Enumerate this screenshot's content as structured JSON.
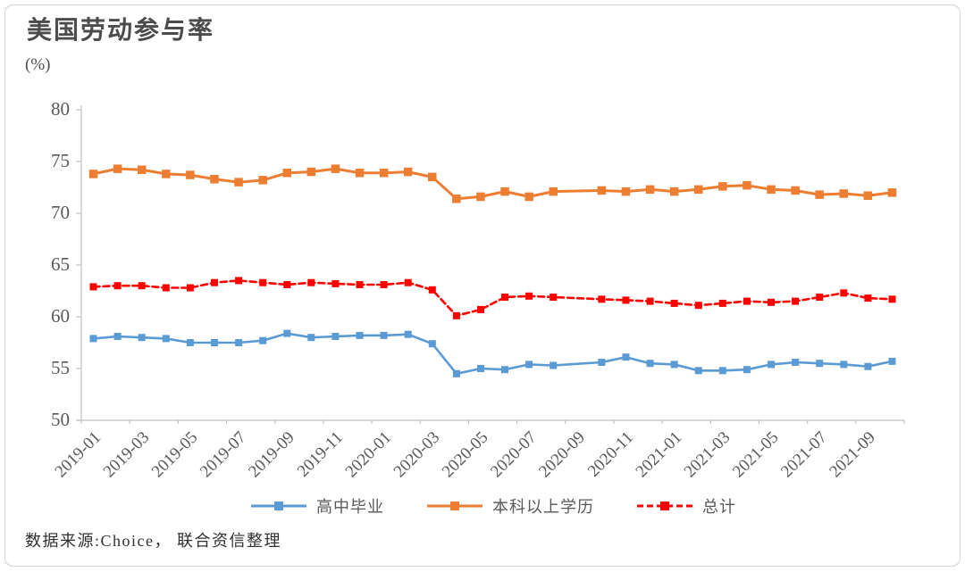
{
  "chart_data": {
    "type": "line",
    "title": "美国劳动参与率",
    "ylabel": "(%)",
    "source_note": "数据来源:Choice， 联合资信整理",
    "ylim": [
      50,
      80
    ],
    "ytick_step": 5,
    "grid": false,
    "legend_position": "bottom",
    "axis_color": "#c0c0c0",
    "text_color": "#595959",
    "x": [
      "2019-01",
      "2019-02",
      "2019-03",
      "2019-04",
      "2019-05",
      "2019-06",
      "2019-07",
      "2019-08",
      "2019-09",
      "2019-10",
      "2019-11",
      "2019-12",
      "2020-01",
      "2020-02",
      "2020-03",
      "2020-04",
      "2020-05",
      "2020-06",
      "2020-07",
      "2020-08",
      "2020-09",
      "2020-10",
      "2020-11",
      "2020-12",
      "2021-01",
      "2021-02",
      "2021-03",
      "2021-04",
      "2021-05",
      "2021-06",
      "2021-07",
      "2021-08",
      "2021-09",
      "2021-10"
    ],
    "xtick_labels": [
      "2019-01",
      "2019-03",
      "2019-05",
      "2019-07",
      "2019-09",
      "2019-11",
      "2020-01",
      "2020-03",
      "2020-05",
      "2020-07",
      "2020-09",
      "2020-11",
      "2021-01",
      "2021-03",
      "2021-05",
      "2021-07",
      "2021-09"
    ],
    "series": [
      {
        "name": "高中毕业",
        "key": "high-school",
        "color": "#5B9BD5",
        "style": "solid",
        "marker": "square",
        "values": [
          57.9,
          58.1,
          58.0,
          57.9,
          57.5,
          57.5,
          57.5,
          57.7,
          58.4,
          58.0,
          58.1,
          58.2,
          58.2,
          58.3,
          57.4,
          54.5,
          55.0,
          54.9,
          55.4,
          55.3,
          null,
          55.6,
          56.1,
          55.5,
          55.4,
          54.8,
          54.8,
          54.9,
          55.4,
          55.6,
          55.5,
          55.4,
          55.2,
          55.7
        ]
      },
      {
        "name": "本科以上学历",
        "key": "bachelor-plus",
        "color": "#ED7D31",
        "style": "solid",
        "marker": "square",
        "values": [
          73.8,
          74.3,
          74.2,
          73.8,
          73.7,
          73.3,
          73.0,
          73.2,
          73.9,
          74.0,
          74.3,
          73.9,
          73.9,
          74.0,
          73.5,
          71.4,
          71.6,
          72.1,
          71.6,
          72.1,
          null,
          72.2,
          72.1,
          72.3,
          72.1,
          72.3,
          72.6,
          72.7,
          72.3,
          72.2,
          71.8,
          71.9,
          71.7,
          72.0
        ]
      },
      {
        "name": "总计",
        "key": "total",
        "color": "#FF0000",
        "style": "dashed",
        "marker": "square",
        "values": [
          62.9,
          63.0,
          63.0,
          62.8,
          62.8,
          63.3,
          63.5,
          63.3,
          63.1,
          63.3,
          63.2,
          63.1,
          63.1,
          63.3,
          62.6,
          60.1,
          60.7,
          61.9,
          62.0,
          61.9,
          null,
          61.7,
          61.6,
          61.5,
          61.3,
          61.1,
          61.3,
          61.5,
          61.4,
          61.5,
          61.9,
          62.3,
          61.8,
          61.7
        ]
      }
    ]
  }
}
